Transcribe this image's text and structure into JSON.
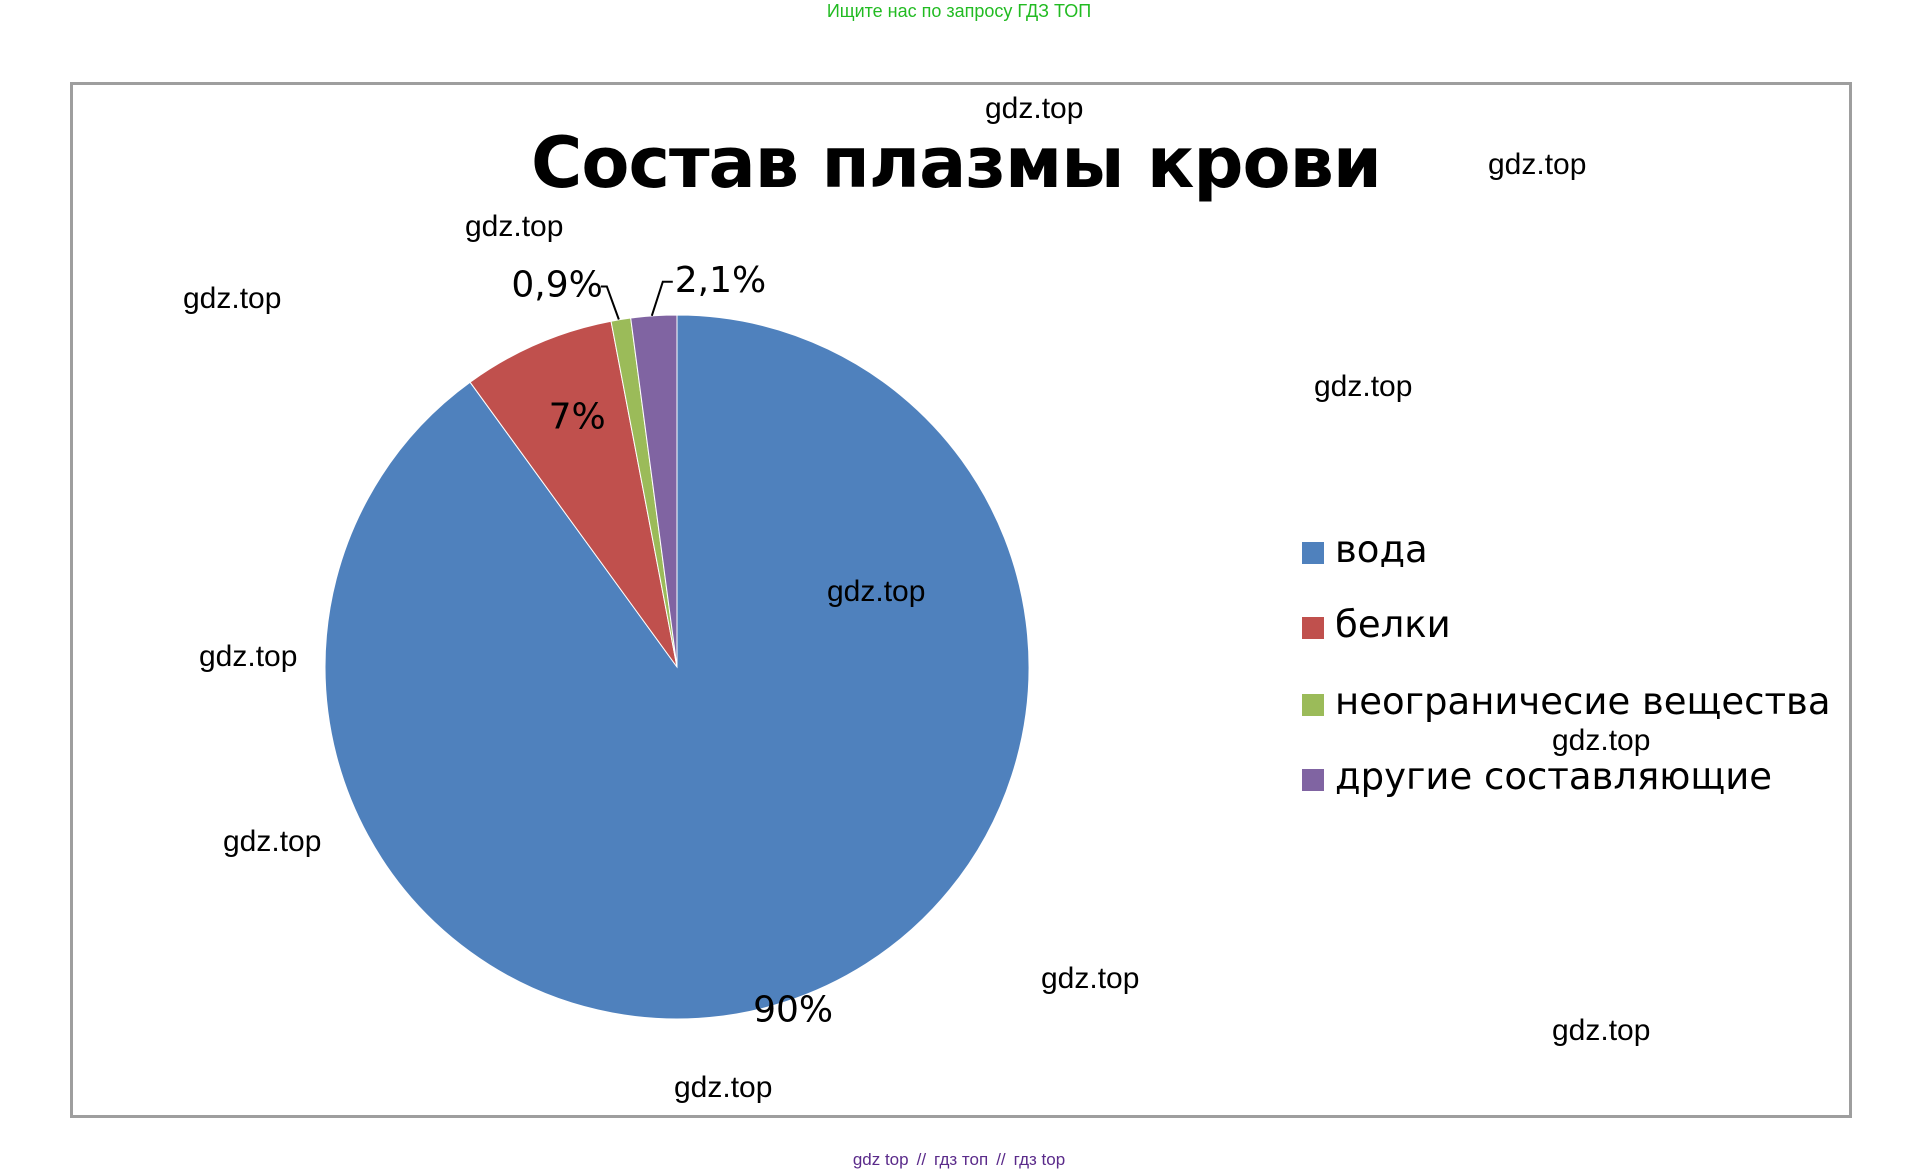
{
  "header_note": "Ищите нас по запросу ГДЗ ТОП",
  "chart_data": {
    "type": "pie",
    "title": "Состав плазмы крови",
    "categories": [
      "вода",
      "белки",
      "неограничесие вещества",
      "другие составляющие"
    ],
    "values": [
      90,
      7,
      0.9,
      2.1
    ],
    "labels": [
      "90%",
      "7%",
      "0,9%",
      "2,1%"
    ],
    "colors": [
      "#4f81bd",
      "#c0504d",
      "#9bbb59",
      "#8064a2"
    ],
    "legend": "right"
  },
  "legend_labels": [
    "вода",
    "белки",
    "неограничесие вещества",
    "другие составляющие"
  ],
  "watermark_text": "gdz.top",
  "footer": {
    "items": [
      "gdz top",
      "гдз топ",
      "гдз top"
    ],
    "separator": "//"
  }
}
